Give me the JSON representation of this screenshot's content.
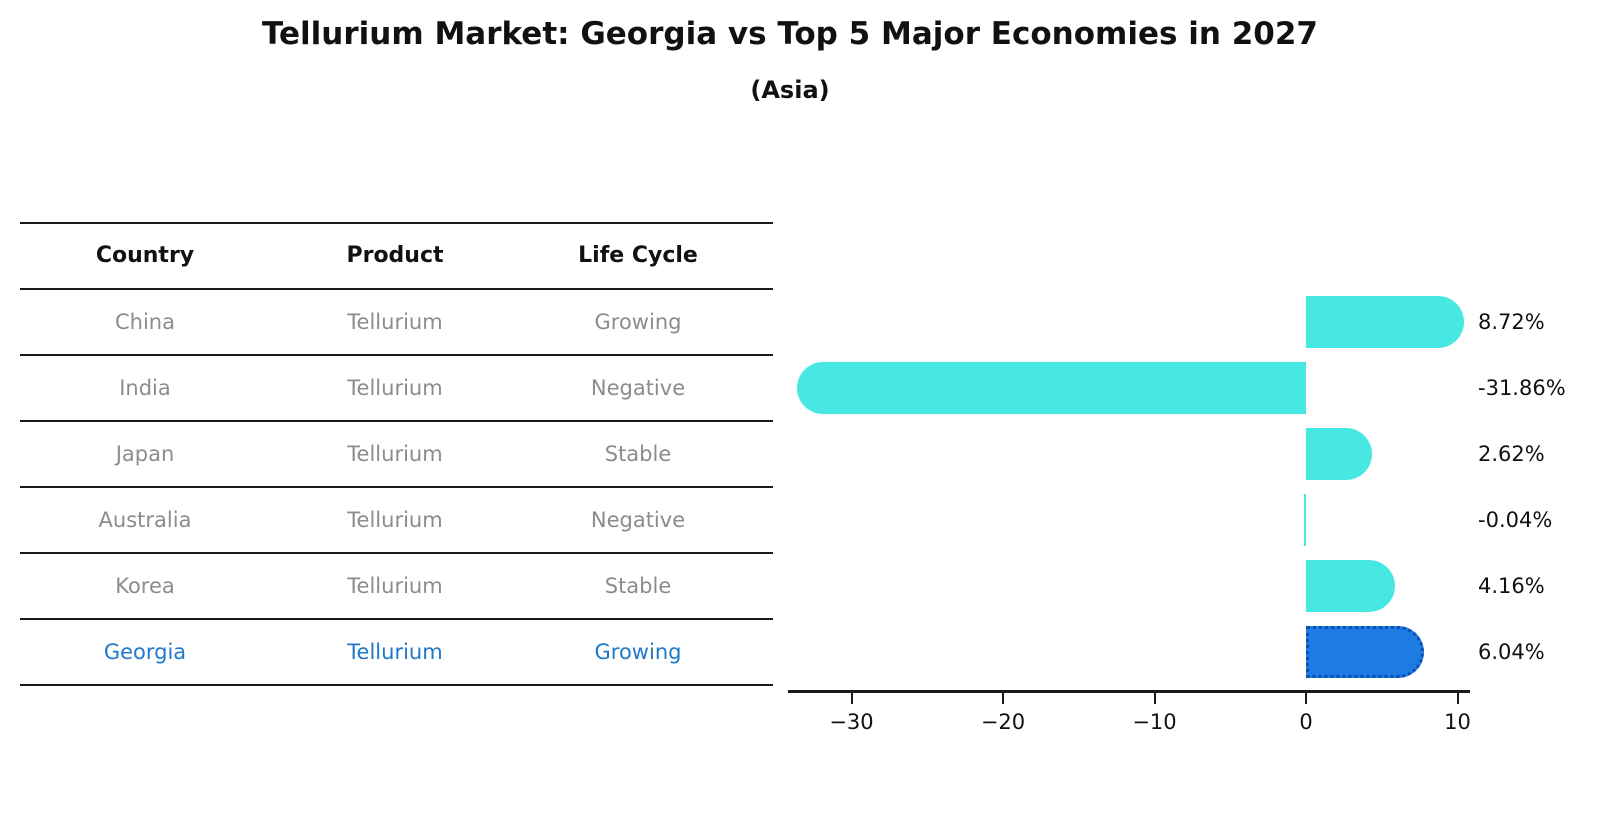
{
  "title": "Tellurium Market: Georgia vs Top 5 Major Economies in 2027",
  "subtitle": "(Asia)",
  "table": {
    "headers": [
      "Country",
      "Product",
      "Life Cycle"
    ],
    "rows": [
      {
        "country": "China",
        "product": "Tellurium",
        "life_cycle": "Growing",
        "highlight": false
      },
      {
        "country": "India",
        "product": "Tellurium",
        "life_cycle": "Negative",
        "highlight": false
      },
      {
        "country": "Japan",
        "product": "Tellurium",
        "life_cycle": "Stable",
        "highlight": false
      },
      {
        "country": "Australia",
        "product": "Tellurium",
        "life_cycle": "Negative",
        "highlight": false
      },
      {
        "country": "Korea",
        "product": "Tellurium",
        "life_cycle": "Stable",
        "highlight": false
      },
      {
        "country": "Georgia",
        "product": "Tellurium",
        "life_cycle": "Growing",
        "highlight": true
      }
    ]
  },
  "chart_data": {
    "type": "bar",
    "orientation": "horizontal",
    "categories": [
      "China",
      "India",
      "Japan",
      "Australia",
      "Korea",
      "Georgia"
    ],
    "values": [
      8.72,
      -31.86,
      2.62,
      -0.04,
      4.16,
      6.04
    ],
    "labels": [
      "8.72%",
      "-31.86%",
      "2.62%",
      "-0.04%",
      "4.16%",
      "6.04%"
    ],
    "value_unit": "%",
    "x_ticks": [
      "−30",
      "−20",
      "−10",
      "0",
      "10"
    ],
    "x_tick_values": [
      -30,
      -20,
      -10,
      0,
      10
    ],
    "xlim": [
      -34.2,
      10.9
    ],
    "grid": false,
    "legend": "none",
    "highlight_index": 5,
    "bar_color": "#47e8e2",
    "highlight_color": "#1e7be4",
    "highlight_border_color": "#0b4fb3"
  },
  "colors": {
    "title_text": "#111111",
    "header_text": "#111111",
    "row_text": "#8c8c8c",
    "highlight_text": "#1f78c8",
    "line": "#1a1a1a"
  }
}
